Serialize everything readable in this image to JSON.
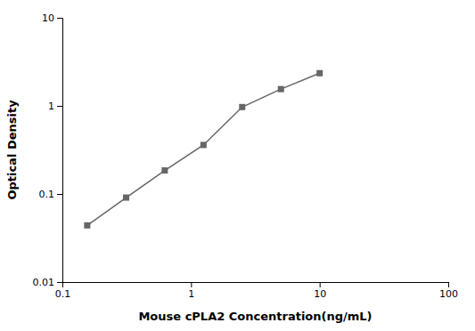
{
  "chart_data": {
    "type": "line",
    "xlabel": "Mouse cPLA2 Concentration(ng/mL)",
    "ylabel": "Optical Density",
    "x": [
      0.156,
      0.313,
      0.625,
      1.25,
      2.5,
      5.0,
      10.0
    ],
    "values": [
      0.044,
      0.091,
      0.185,
      0.36,
      0.97,
      1.55,
      2.35
    ],
    "color": "#666666",
    "marker": "square",
    "log": true,
    "xlim": [
      0.1,
      100
    ],
    "ylim": [
      0.01,
      10
    ],
    "xticks": [
      0.1,
      1,
      10,
      100
    ],
    "yticks": [
      0.01,
      0.1,
      1,
      10
    ]
  }
}
